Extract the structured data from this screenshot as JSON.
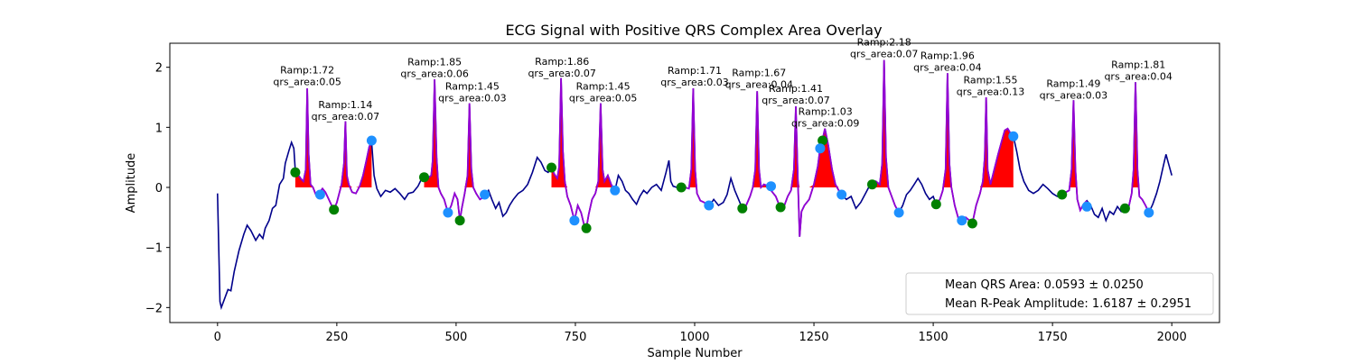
{
  "chart_data": {
    "type": "line",
    "title": "ECG Signal with Positive QRS Complex Area Overlay",
    "xlabel": "Sample Number",
    "ylabel": "Amplitude",
    "xlim": [
      -100,
      2100
    ],
    "ylim": [
      -2.25,
      2.4
    ],
    "xticks": [
      0,
      250,
      500,
      750,
      1000,
      1250,
      1500,
      1750,
      2000
    ],
    "yticks": [
      -2,
      -1,
      0,
      1,
      2
    ],
    "legend": {
      "placement": "lower-right",
      "entries": [
        "Mean QRS Area: 0.0593 ± 0.0250",
        "Mean R-Peak Amplitude: 1.6187 ± 0.2951"
      ]
    },
    "colors": {
      "signal": "#00008b",
      "qrs_segment": "#9400d3",
      "area_fill": "#ff0000",
      "onset_marker": "#008000",
      "offset_marker": "#1e90ff"
    },
    "signal": [
      [
        0,
        -0.1
      ],
      [
        5,
        -1.9
      ],
      [
        8,
        -2.0
      ],
      [
        15,
        -1.85
      ],
      [
        22,
        -1.7
      ],
      [
        28,
        -1.72
      ],
      [
        35,
        -1.4
      ],
      [
        45,
        -1.05
      ],
      [
        55,
        -0.78
      ],
      [
        62,
        -0.63
      ],
      [
        70,
        -0.72
      ],
      [
        80,
        -0.88
      ],
      [
        88,
        -0.78
      ],
      [
        95,
        -0.85
      ],
      [
        100,
        -0.68
      ],
      [
        108,
        -0.55
      ],
      [
        115,
        -0.35
      ],
      [
        122,
        -0.3
      ],
      [
        130,
        0.05
      ],
      [
        138,
        0.15
      ],
      [
        142,
        0.4
      ],
      [
        150,
        0.62
      ],
      [
        155,
        0.75
      ],
      [
        160,
        0.65
      ],
      [
        163,
        0.28
      ],
      [
        168,
        0.22
      ],
      [
        175,
        0.14
      ],
      [
        180,
        0.1
      ],
      [
        185,
        0.3
      ],
      [
        188,
        1.65
      ],
      [
        191,
        0.55
      ],
      [
        195,
        0.05
      ],
      [
        200,
        0.0
      ],
      [
        206,
        -0.12
      ],
      [
        212,
        -0.1
      ],
      [
        220,
        -0.02
      ],
      [
        226,
        -0.08
      ],
      [
        232,
        -0.18
      ],
      [
        238,
        -0.28
      ],
      [
        244,
        -0.37
      ],
      [
        250,
        -0.25
      ],
      [
        255,
        -0.1
      ],
      [
        260,
        0.05
      ],
      [
        265,
        0.4
      ],
      [
        268,
        1.1
      ],
      [
        271,
        0.2
      ],
      [
        275,
        0.05
      ],
      [
        282,
        -0.08
      ],
      [
        290,
        -0.1
      ],
      [
        298,
        0.02
      ],
      [
        305,
        0.2
      ],
      [
        312,
        0.45
      ],
      [
        318,
        0.68
      ],
      [
        323,
        0.75
      ],
      [
        328,
        0.2
      ],
      [
        334,
        -0.02
      ],
      [
        342,
        -0.15
      ],
      [
        352,
        -0.05
      ],
      [
        362,
        -0.08
      ],
      [
        372,
        -0.02
      ],
      [
        382,
        -0.1
      ],
      [
        392,
        -0.2
      ],
      [
        400,
        -0.1
      ],
      [
        410,
        -0.08
      ],
      [
        420,
        0.02
      ],
      [
        428,
        0.15
      ],
      [
        433,
        0.2
      ],
      [
        440,
        0.15
      ],
      [
        448,
        0.2
      ],
      [
        451,
        0.45
      ],
      [
        455,
        1.8
      ],
      [
        459,
        0.5
      ],
      [
        463,
        0.0
      ],
      [
        468,
        -0.1
      ],
      [
        475,
        -0.2
      ],
      [
        483,
        -0.42
      ],
      [
        490,
        -0.3
      ],
      [
        497,
        -0.1
      ],
      [
        503,
        -0.2
      ],
      [
        508,
        -0.55
      ],
      [
        512,
        -0.35
      ],
      [
        518,
        -0.1
      ],
      [
        524,
        0.2
      ],
      [
        528,
        1.4
      ],
      [
        532,
        0.3
      ],
      [
        536,
        0.0
      ],
      [
        542,
        -0.1
      ],
      [
        550,
        -0.2
      ],
      [
        560,
        -0.15
      ],
      [
        568,
        -0.05
      ],
      [
        575,
        -0.2
      ],
      [
        583,
        -0.35
      ],
      [
        590,
        -0.25
      ],
      [
        598,
        -0.48
      ],
      [
        605,
        -0.42
      ],
      [
        612,
        -0.3
      ],
      [
        620,
        -0.2
      ],
      [
        630,
        -0.1
      ],
      [
        640,
        -0.05
      ],
      [
        650,
        0.05
      ],
      [
        660,
        0.25
      ],
      [
        670,
        0.5
      ],
      [
        678,
        0.42
      ],
      [
        686,
        0.28
      ],
      [
        693,
        0.25
      ],
      [
        700,
        0.33
      ],
      [
        706,
        0.22
      ],
      [
        712,
        0.15
      ],
      [
        716,
        0.35
      ],
      [
        720,
        1.82
      ],
      [
        724,
        0.6
      ],
      [
        728,
        0.1
      ],
      [
        733,
        -0.15
      ],
      [
        740,
        -0.3
      ],
      [
        748,
        -0.55
      ],
      [
        755,
        -0.3
      ],
      [
        762,
        -0.42
      ],
      [
        768,
        -0.62
      ],
      [
        773,
        -0.68
      ],
      [
        778,
        -0.45
      ],
      [
        785,
        -0.2
      ],
      [
        792,
        -0.1
      ],
      [
        798,
        0.1
      ],
      [
        803,
        1.4
      ],
      [
        807,
        0.3
      ],
      [
        811,
        0.1
      ],
      [
        818,
        0.2
      ],
      [
        825,
        0.05
      ],
      [
        833,
        -0.05
      ],
      [
        840,
        0.2
      ],
      [
        848,
        0.1
      ],
      [
        855,
        -0.05
      ],
      [
        862,
        -0.1
      ],
      [
        870,
        -0.2
      ],
      [
        878,
        -0.28
      ],
      [
        885,
        -0.15
      ],
      [
        893,
        -0.05
      ],
      [
        900,
        -0.1
      ],
      [
        910,
        0.0
      ],
      [
        920,
        0.05
      ],
      [
        930,
        -0.05
      ],
      [
        940,
        0.25
      ],
      [
        946,
        0.45
      ],
      [
        950,
        0.1
      ],
      [
        955,
        0.02
      ],
      [
        963,
        0.0
      ],
      [
        972,
        0.02
      ],
      [
        980,
        0.0
      ],
      [
        988,
        -0.02
      ],
      [
        993,
        0.3
      ],
      [
        997,
        1.65
      ],
      [
        1001,
        0.3
      ],
      [
        1005,
        -0.1
      ],
      [
        1012,
        -0.22
      ],
      [
        1020,
        -0.25
      ],
      [
        1030,
        -0.32
      ],
      [
        1040,
        -0.2
      ],
      [
        1050,
        -0.3
      ],
      [
        1060,
        -0.25
      ],
      [
        1068,
        -0.12
      ],
      [
        1076,
        0.15
      ],
      [
        1084,
        -0.05
      ],
      [
        1092,
        -0.2
      ],
      [
        1100,
        -0.35
      ],
      [
        1108,
        -0.3
      ],
      [
        1116,
        -0.15
      ],
      [
        1122,
        0.0
      ],
      [
        1127,
        0.3
      ],
      [
        1131,
        1.6
      ],
      [
        1135,
        0.3
      ],
      [
        1139,
        0.0
      ],
      [
        1145,
        0.05
      ],
      [
        1152,
        0.03
      ],
      [
        1160,
        -0.05
      ],
      [
        1170,
        -0.15
      ],
      [
        1180,
        -0.35
      ],
      [
        1188,
        -0.3
      ],
      [
        1195,
        -0.15
      ],
      [
        1202,
        -0.05
      ],
      [
        1208,
        0.3
      ],
      [
        1212,
        1.35
      ],
      [
        1216,
        0.2
      ],
      [
        1220,
        -0.82
      ],
      [
        1224,
        -0.4
      ],
      [
        1230,
        -0.3
      ],
      [
        1240,
        -0.2
      ],
      [
        1250,
        0.05
      ],
      [
        1258,
        0.35
      ],
      [
        1263,
        0.65
      ],
      [
        1268,
        0.8
      ],
      [
        1273,
        0.98
      ],
      [
        1280,
        0.7
      ],
      [
        1288,
        0.3
      ],
      [
        1295,
        0.05
      ],
      [
        1302,
        -0.05
      ],
      [
        1308,
        -0.12
      ],
      [
        1318,
        -0.2
      ],
      [
        1328,
        -0.15
      ],
      [
        1338,
        -0.35
      ],
      [
        1348,
        -0.25
      ],
      [
        1358,
        -0.1
      ],
      [
        1366,
        0.02
      ],
      [
        1372,
        0.05
      ],
      [
        1380,
        0.1
      ],
      [
        1388,
        0.05
      ],
      [
        1393,
        0.4
      ],
      [
        1397,
        2.12
      ],
      [
        1401,
        0.5
      ],
      [
        1406,
        0.0
      ],
      [
        1413,
        -0.15
      ],
      [
        1420,
        -0.3
      ],
      [
        1428,
        -0.42
      ],
      [
        1436,
        -0.3
      ],
      [
        1444,
        -0.12
      ],
      [
        1452,
        -0.05
      ],
      [
        1460,
        0.05
      ],
      [
        1468,
        0.15
      ],
      [
        1476,
        0.05
      ],
      [
        1484,
        -0.1
      ],
      [
        1492,
        -0.2
      ],
      [
        1500,
        -0.15
      ],
      [
        1506,
        -0.28
      ],
      [
        1514,
        -0.2
      ],
      [
        1520,
        -0.05
      ],
      [
        1526,
        0.3
      ],
      [
        1530,
        1.9
      ],
      [
        1534,
        0.4
      ],
      [
        1538,
        0.0
      ],
      [
        1545,
        -0.3
      ],
      [
        1552,
        -0.5
      ],
      [
        1560,
        -0.55
      ],
      [
        1568,
        -0.5
      ],
      [
        1576,
        -0.55
      ],
      [
        1582,
        -0.6
      ],
      [
        1590,
        -0.3
      ],
      [
        1598,
        -0.1
      ],
      [
        1604,
        0.1
      ],
      [
        1608,
        0.5
      ],
      [
        1611,
        1.5
      ],
      [
        1614,
        0.3
      ],
      [
        1620,
        0.05
      ],
      [
        1628,
        0.3
      ],
      [
        1636,
        0.55
      ],
      [
        1644,
        0.78
      ],
      [
        1650,
        0.95
      ],
      [
        1656,
        0.98
      ],
      [
        1662,
        0.9
      ],
      [
        1668,
        0.85
      ],
      [
        1675,
        0.6
      ],
      [
        1682,
        0.3
      ],
      [
        1690,
        0.1
      ],
      [
        1700,
        -0.05
      ],
      [
        1710,
        -0.1
      ],
      [
        1720,
        -0.05
      ],
      [
        1730,
        0.05
      ],
      [
        1740,
        -0.02
      ],
      [
        1750,
        -0.1
      ],
      [
        1760,
        -0.15
      ],
      [
        1770,
        -0.12
      ],
      [
        1778,
        -0.08
      ],
      [
        1785,
        -0.05
      ],
      [
        1790,
        0.3
      ],
      [
        1794,
        1.45
      ],
      [
        1798,
        0.3
      ],
      [
        1802,
        -0.2
      ],
      [
        1808,
        -0.38
      ],
      [
        1815,
        -0.28
      ],
      [
        1822,
        -0.22
      ],
      [
        1830,
        -0.3
      ],
      [
        1838,
        -0.45
      ],
      [
        1846,
        -0.5
      ],
      [
        1854,
        -0.35
      ],
      [
        1862,
        -0.55
      ],
      [
        1870,
        -0.4
      ],
      [
        1878,
        -0.45
      ],
      [
        1886,
        -0.32
      ],
      [
        1894,
        -0.4
      ],
      [
        1902,
        -0.35
      ],
      [
        1910,
        -0.32
      ],
      [
        1916,
        -0.1
      ],
      [
        1920,
        0.3
      ],
      [
        1924,
        1.75
      ],
      [
        1928,
        0.3
      ],
      [
        1932,
        -0.15
      ],
      [
        1938,
        -0.2
      ],
      [
        1945,
        -0.3
      ],
      [
        1952,
        -0.42
      ],
      [
        1960,
        -0.28
      ],
      [
        1968,
        -0.1
      ],
      [
        1975,
        0.1
      ],
      [
        1982,
        0.35
      ],
      [
        1988,
        0.55
      ],
      [
        1993,
        0.4
      ],
      [
        2000,
        0.2
      ]
    ],
    "beats": [
      {
        "onset": 163,
        "offset": 215,
        "area_end": 323,
        "r_x": 188,
        "r_y": 1.65,
        "onset_y": 0.25,
        "offset_y": -0.12,
        "end_y": -0.37,
        "end_x": 244,
        "label_x": 188,
        "label_y": 1.72,
        "ramp": "Ramp:1.72",
        "qrs": "qrs_area:0.05"
      },
      {
        "onset": 215,
        "offset": 323,
        "r_x": 268,
        "r_y": 1.1,
        "label_x": 268,
        "label_y": 1.14,
        "ramp": "Ramp:1.14",
        "qrs": "qrs_area:0.07"
      },
      {
        "onset": 433,
        "offset": 483,
        "r_x": 455,
        "r_y": 1.8,
        "label_x": 455,
        "label_y": 1.85,
        "ramp": "Ramp:1.85",
        "qrs": "qrs_area:0.06"
      },
      {
        "onset": 508,
        "offset": 560,
        "r_x": 528,
        "r_y": 1.4,
        "label_x": 534,
        "label_y": 1.45,
        "ramp": "Ramp:1.45",
        "qrs": "qrs_area:0.03"
      },
      {
        "onset": 700,
        "offset": 748,
        "r_x": 720,
        "r_y": 1.82,
        "label_x": 722,
        "label_y": 1.86,
        "ramp": "Ramp:1.86",
        "qrs": "qrs_area:0.07"
      },
      {
        "onset": 773,
        "offset": 833,
        "r_x": 803,
        "r_y": 1.4,
        "label_x": 808,
        "label_y": 1.45,
        "ramp": "Ramp:1.45",
        "qrs": "qrs_area:0.05"
      },
      {
        "onset": 972,
        "offset": 1030,
        "r_x": 997,
        "r_y": 1.65,
        "label_x": 1000,
        "label_y": 1.71,
        "ramp": "Ramp:1.71",
        "qrs": "qrs_area:0.03"
      },
      {
        "onset": 1100,
        "offset": 1160,
        "r_x": 1131,
        "r_y": 1.6,
        "label_x": 1135,
        "label_y": 1.67,
        "ramp": "Ramp:1.67",
        "qrs": "qrs_area:0.04"
      },
      {
        "onset": 1180,
        "offset": 1263,
        "r_x": 1212,
        "r_y": 1.35,
        "label_x": 1212,
        "label_y": 1.41,
        "ramp": "Ramp:1.41",
        "qrs": "qrs_area:0.07"
      },
      {
        "onset": 1268,
        "offset": 1308,
        "r_x": 1273,
        "r_y": 0.98,
        "label_x": 1274,
        "label_y": 1.03,
        "ramp": "Ramp:1.03",
        "qrs": "qrs_area:0.09"
      },
      {
        "onset": 1372,
        "offset": 1428,
        "r_x": 1397,
        "r_y": 2.12,
        "label_x": 1397,
        "label_y": 2.18,
        "ramp": "Ramp:2.18",
        "qrs": "qrs_area:0.07"
      },
      {
        "onset": 1506,
        "offset": 1560,
        "r_x": 1530,
        "r_y": 1.9,
        "label_x": 1530,
        "label_y": 1.96,
        "ramp": "Ramp:1.96",
        "qrs": "qrs_area:0.04"
      },
      {
        "onset": 1582,
        "offset": 1668,
        "r_x": 1611,
        "r_y": 1.5,
        "label_x": 1620,
        "label_y": 1.55,
        "ramp": "Ramp:1.55",
        "qrs": "qrs_area:0.13"
      },
      {
        "onset": 1770,
        "offset": 1822,
        "r_x": 1794,
        "r_y": 1.45,
        "label_x": 1794,
        "label_y": 1.49,
        "ramp": "Ramp:1.49",
        "qrs": "qrs_area:0.03"
      },
      {
        "onset": 1902,
        "offset": 1952,
        "r_x": 1924,
        "r_y": 1.75,
        "label_x": 1930,
        "label_y": 1.81,
        "ramp": "Ramp:1.81",
        "qrs": "qrs_area:0.04"
      }
    ],
    "qrs_segments": [
      [
        163,
        323
      ],
      [
        433,
        560
      ],
      [
        700,
        833
      ],
      [
        972,
        1030
      ],
      [
        1100,
        1308
      ],
      [
        1372,
        1428
      ],
      [
        1506,
        1668
      ],
      [
        1770,
        1822
      ],
      [
        1902,
        1952
      ]
    ],
    "area_fills": [
      [
        163,
        215
      ],
      [
        244,
        323
      ],
      [
        433,
        483
      ],
      [
        508,
        540
      ],
      [
        700,
        748
      ],
      [
        773,
        833
      ],
      [
        972,
        1030
      ],
      [
        1100,
        1160
      ],
      [
        1180,
        1308
      ],
      [
        1372,
        1428
      ],
      [
        1506,
        1560
      ],
      [
        1582,
        1668
      ],
      [
        1770,
        1822
      ],
      [
        1902,
        1952
      ]
    ],
    "onset_markers": [
      [
        163,
        0.25
      ],
      [
        244,
        -0.37
      ],
      [
        433,
        0.17
      ],
      [
        508,
        -0.55
      ],
      [
        700,
        0.33
      ],
      [
        773,
        -0.68
      ],
      [
        972,
        0.0
      ],
      [
        1100,
        -0.35
      ],
      [
        1180,
        -0.33
      ],
      [
        1268,
        0.78
      ],
      [
        1372,
        0.05
      ],
      [
        1506,
        -0.28
      ],
      [
        1582,
        -0.6
      ],
      [
        1770,
        -0.12
      ],
      [
        1902,
        -0.35
      ]
    ],
    "offset_markers": [
      [
        215,
        -0.12
      ],
      [
        323,
        0.78
      ],
      [
        483,
        -0.42
      ],
      [
        560,
        -0.12
      ],
      [
        748,
        -0.55
      ],
      [
        833,
        -0.05
      ],
      [
        1030,
        -0.3
      ],
      [
        1160,
        0.02
      ],
      [
        1263,
        0.65
      ],
      [
        1308,
        -0.12
      ],
      [
        1428,
        -0.42
      ],
      [
        1560,
        -0.55
      ],
      [
        1668,
        0.85
      ],
      [
        1822,
        -0.32
      ],
      [
        1952,
        -0.42
      ]
    ]
  }
}
